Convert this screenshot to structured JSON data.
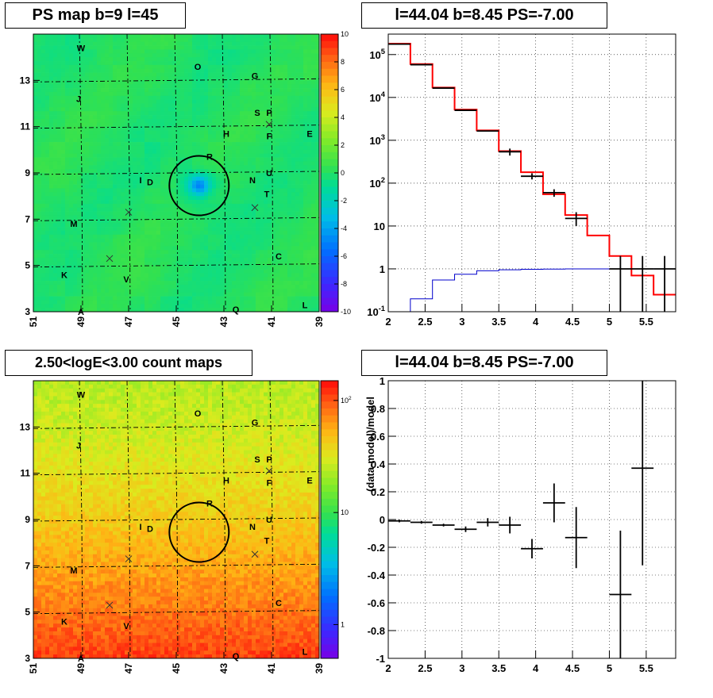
{
  "panels": {
    "tl": {
      "title": "PS map b=9 l=45"
    },
    "tr": {
      "title": "l=44.04 b=8.45 PS=-7.00"
    },
    "bl": {
      "title": "2.50<logE<3.00 count maps"
    },
    "br": {
      "title": "l=44.04 b=8.45 PS=-7.00"
    }
  },
  "colors": {
    "data": "#000000",
    "model": "#ff0000",
    "efficiency": "#0000cc",
    "grid": "#000000",
    "ps_background": "#33dd55",
    "count_low": "#ccee22",
    "count_high": "#ff5522"
  },
  "chart_data": [
    {
      "type": "heatmap",
      "name": "ps-map",
      "title": "PS map b=9 l=45",
      "x_range": [
        51,
        39
      ],
      "y_range": [
        3,
        15
      ],
      "x_ticks": [
        "51",
        "49",
        "47",
        "45",
        "43",
        "41",
        "39"
      ],
      "y_ticks": [
        "3",
        "5",
        "7",
        "9",
        "11",
        "13"
      ],
      "colorbar_range": [
        -10,
        10
      ],
      "colorbar_ticks": [
        "10",
        "8",
        "6",
        "4",
        "2",
        "0",
        "-2",
        "-4",
        "-6",
        "-8",
        "-10"
      ],
      "highlight_circle": {
        "l": 44.04,
        "b": 8.45,
        "radius": 0.5
      },
      "sources": [
        {
          "label": "W",
          "l": 49.0,
          "b": 14.4
        },
        {
          "label": "O",
          "l": 44.1,
          "b": 13.6
        },
        {
          "label": "G",
          "l": 41.7,
          "b": 13.2
        },
        {
          "label": "J",
          "l": 49.1,
          "b": 12.2
        },
        {
          "label": "S",
          "l": 41.6,
          "b": 11.6
        },
        {
          "label": "P",
          "l": 41.1,
          "b": 11.6
        },
        {
          "label": "H",
          "l": 42.9,
          "b": 10.7
        },
        {
          "label": "F",
          "l": 41.1,
          "b": 10.6
        },
        {
          "label": "E",
          "l": 39.4,
          "b": 10.7
        },
        {
          "label": "R",
          "l": 43.6,
          "b": 9.7
        },
        {
          "label": "U",
          "l": 41.1,
          "b": 9.0
        },
        {
          "label": "I",
          "l": 46.5,
          "b": 8.7
        },
        {
          "label": "D",
          "l": 46.1,
          "b": 8.6
        },
        {
          "label": "N",
          "l": 41.8,
          "b": 8.7
        },
        {
          "label": "T",
          "l": 41.2,
          "b": 8.1
        },
        {
          "label": "M",
          "l": 49.3,
          "b": 6.8
        },
        {
          "label": "C",
          "l": 40.7,
          "b": 5.4
        },
        {
          "label": "K",
          "l": 49.7,
          "b": 4.6
        },
        {
          "label": "V",
          "l": 47.1,
          "b": 4.4
        },
        {
          "label": "Q",
          "l": 42.5,
          "b": 3.1
        },
        {
          "label": "L",
          "l": 39.6,
          "b": 3.3
        },
        {
          "label": "A",
          "l": 49.0,
          "b": 3.0
        }
      ],
      "crosses": [
        {
          "l": 47.0,
          "b": 7.3
        },
        {
          "l": 47.8,
          "b": 5.3
        },
        {
          "l": 41.7,
          "b": 7.5
        },
        {
          "l": 41.1,
          "b": 11.1
        }
      ]
    },
    {
      "type": "line",
      "name": "energy-spectrum",
      "title": "l=44.04 b=8.45 PS=-7.00",
      "x_range": [
        2,
        5.9
      ],
      "y_range": [
        0.1,
        300000
      ],
      "y_log": true,
      "x_ticks": [
        "2",
        "2.5",
        "3",
        "3.5",
        "4",
        "4.5",
        "5",
        "5.5"
      ],
      "y_ticks": [
        "10^-1",
        "1",
        "10",
        "10^2",
        "10^3",
        "10^4",
        "10^5"
      ],
      "grid": true,
      "bin_edges": [
        2.0,
        2.3,
        2.6,
        2.9,
        3.2,
        3.5,
        3.8,
        4.1,
        4.4,
        4.7,
        5.0,
        5.3,
        5.6,
        5.9
      ],
      "model_values": [
        180000,
        60000,
        17000,
        5200,
        1700,
        560,
        180,
        55,
        18,
        6,
        2,
        0.7,
        0.25
      ],
      "efficiency_values": [
        0.03,
        0.2,
        0.55,
        0.75,
        0.9,
        0.95,
        0.98,
        0.99,
        1.0,
        1.0,
        1.0,
        1.0,
        1.0
      ],
      "data_points": [
        {
          "x": 2.15,
          "y": 175000
        },
        {
          "x": 2.45,
          "y": 58000
        },
        {
          "x": 2.75,
          "y": 16500
        },
        {
          "x": 3.05,
          "y": 5000
        },
        {
          "x": 3.35,
          "y": 1650
        },
        {
          "x": 3.65,
          "y": 540,
          "err_lo": 440,
          "err_hi": 640
        },
        {
          "x": 3.95,
          "y": 145,
          "err_lo": 122,
          "err_hi": 170
        },
        {
          "x": 4.25,
          "y": 60,
          "err_lo": 48,
          "err_hi": 72
        },
        {
          "x": 4.55,
          "y": 15,
          "err_lo": 10,
          "err_hi": 21
        },
        {
          "x": 5.15,
          "y": 1,
          "err_lo": 0.1,
          "err_hi": 2.0
        },
        {
          "x": 5.45,
          "y": 1,
          "err_lo": 0.1,
          "err_hi": 2.0
        },
        {
          "x": 5.75,
          "y": 1,
          "err_lo": 0.1,
          "err_hi": 2.0
        }
      ]
    },
    {
      "type": "heatmap",
      "name": "count-map",
      "title": "2.50<logE<3.00 count maps",
      "x_range": [
        51,
        39
      ],
      "y_range": [
        3,
        15
      ],
      "x_ticks": [
        "51",
        "49",
        "47",
        "45",
        "43",
        "41",
        "39"
      ],
      "y_ticks": [
        "3",
        "5",
        "7",
        "9",
        "11",
        "13"
      ],
      "colorbar_log": true,
      "colorbar_range": [
        0.5,
        150
      ],
      "colorbar_ticks": [
        "10^2",
        "10",
        "1"
      ],
      "highlight_circle": {
        "l": 44.04,
        "b": 8.45,
        "radius": 0.5
      }
    },
    {
      "type": "scatter",
      "name": "residuals",
      "title": "l=44.04 b=8.45 PS=-7.00",
      "ylabel": "(data-model)/model",
      "x_range": [
        2,
        5.9
      ],
      "y_range": [
        -1,
        1
      ],
      "x_ticks": [
        "2",
        "2.5",
        "3",
        "3.5",
        "4",
        "4.5",
        "5",
        "5.5"
      ],
      "y_ticks": [
        "-1",
        "-0.8",
        "-0.6",
        "-0.4",
        "-0.2",
        "0",
        "0.2",
        "0.4",
        "0.6",
        "0.8",
        "1"
      ],
      "grid": true,
      "points": [
        {
          "x": 2.15,
          "y": -0.01,
          "xerr": 0.15,
          "yerr": 0.01
        },
        {
          "x": 2.45,
          "y": -0.02,
          "xerr": 0.15,
          "yerr": 0.01
        },
        {
          "x": 2.75,
          "y": -0.04,
          "xerr": 0.15,
          "yerr": 0.01
        },
        {
          "x": 3.05,
          "y": -0.07,
          "xerr": 0.15,
          "yerr": 0.02
        },
        {
          "x": 3.35,
          "y": -0.02,
          "xerr": 0.15,
          "yerr": 0.03
        },
        {
          "x": 3.65,
          "y": -0.04,
          "xerr": 0.15,
          "yerr": 0.06
        },
        {
          "x": 3.95,
          "y": -0.21,
          "xerr": 0.15,
          "yerr": 0.07
        },
        {
          "x": 4.25,
          "y": 0.12,
          "xerr": 0.15,
          "yerr": 0.14
        },
        {
          "x": 4.55,
          "y": -0.13,
          "xerr": 0.15,
          "yerr": 0.22
        },
        {
          "x": 5.15,
          "y": -0.54,
          "xerr": 0.15,
          "yerr": 0.46
        },
        {
          "x": 5.45,
          "y": 0.37,
          "xerr": 0.15,
          "yerr": 0.7
        }
      ]
    }
  ]
}
